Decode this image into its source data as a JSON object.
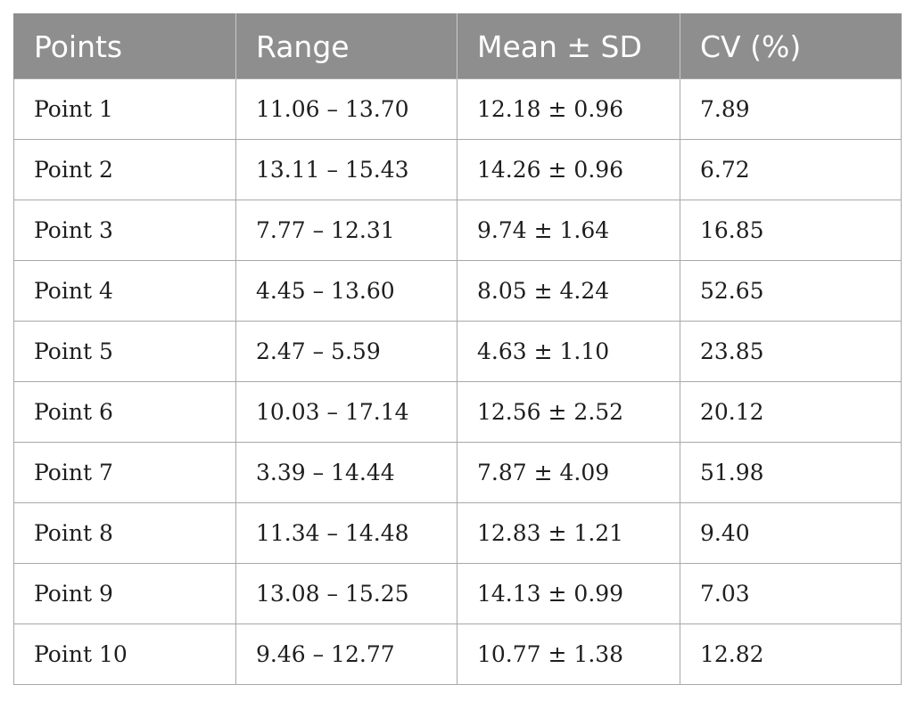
{
  "table": {
    "headers": [
      "Points",
      "Range",
      "Mean ± SD",
      "CV (%)"
    ],
    "rows": [
      [
        "Point 1",
        "11.06 – 13.70",
        "12.18 ± 0.96",
        "7.89"
      ],
      [
        "Point 2",
        "13.11 – 15.43",
        "14.26 ± 0.96",
        "6.72"
      ],
      [
        "Point 3",
        "7.77 – 12.31",
        "9.74 ± 1.64",
        "16.85"
      ],
      [
        "Point 4",
        "4.45 – 13.60",
        "8.05 ± 4.24",
        "52.65"
      ],
      [
        "Point 5",
        "2.47 – 5.59",
        "4.63 ± 1.10",
        "23.85"
      ],
      [
        "Point 6",
        "10.03 – 17.14",
        "12.56 ± 2.52",
        "20.12"
      ],
      [
        "Point 7",
        "3.39 – 14.44",
        "7.87 ± 4.09",
        "51.98"
      ],
      [
        "Point 8",
        "11.34 – 14.48",
        "12.83 ± 1.21",
        "9.40"
      ],
      [
        "Point 9",
        "13.08 – 15.25",
        "14.13 ± 0.99",
        "7.03"
      ],
      [
        "Point 10",
        "9.46 – 12.77",
        "10.77 ± 1.38",
        "12.82"
      ]
    ]
  },
  "colors": {
    "header_background": "#8e8e8e",
    "header_text": "#ffffff",
    "grid_lines": "#a8a8a8",
    "body_text": "#1e1e1e"
  }
}
